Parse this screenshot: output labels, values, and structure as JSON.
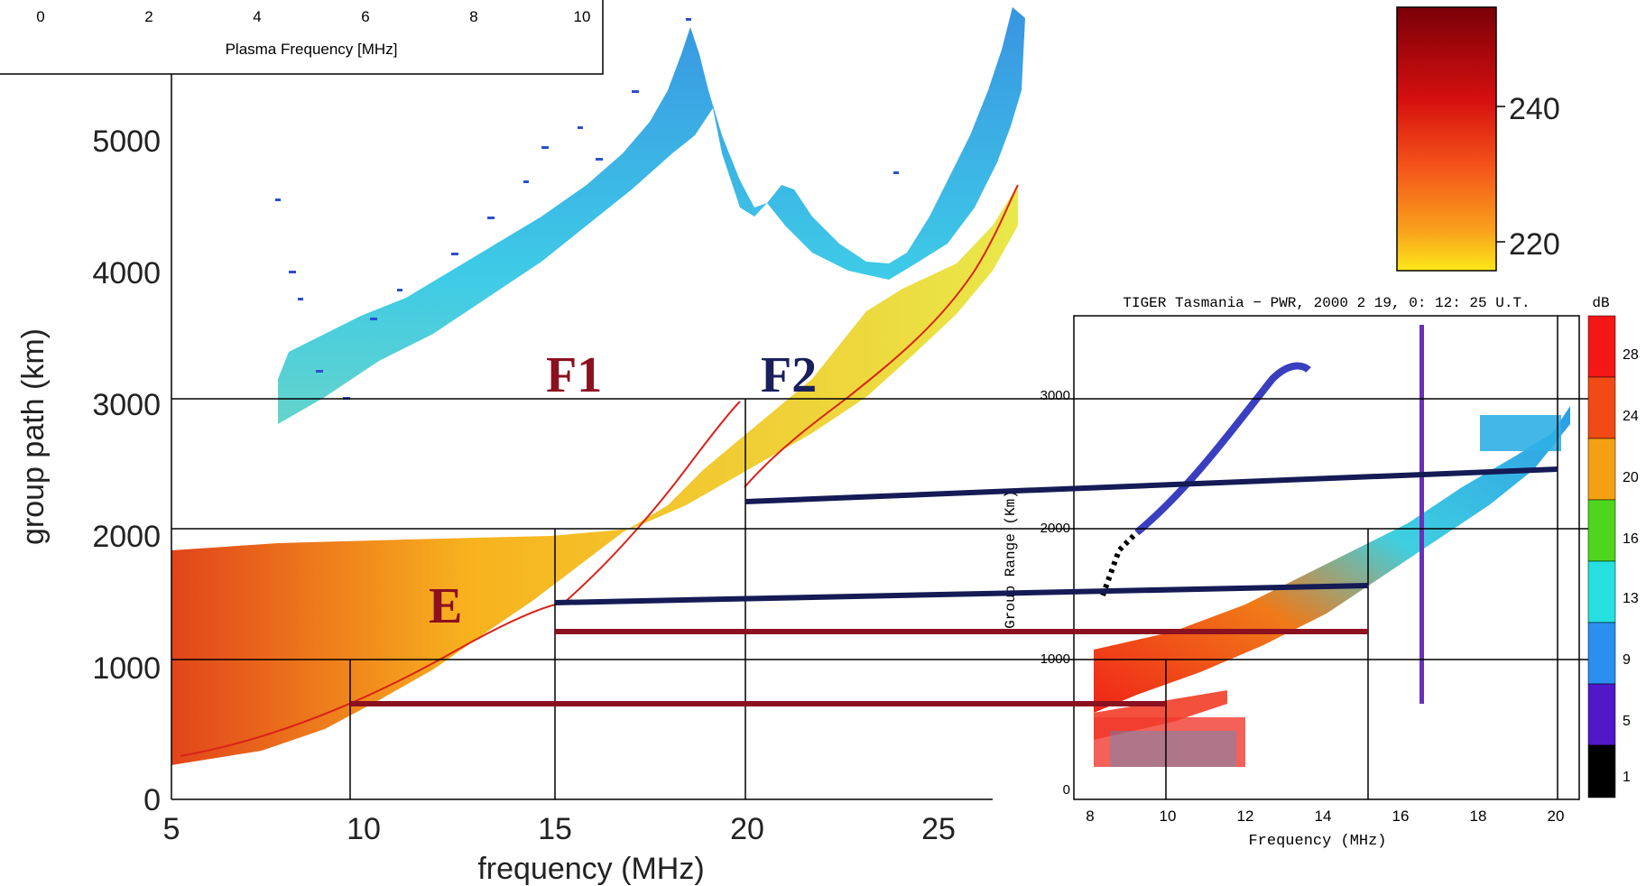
{
  "left_chart": {
    "xlabel": "frequency (MHz)",
    "ylabel": "group path (km)",
    "xticks": [
      "5",
      "10",
      "15",
      "20",
      "25"
    ],
    "yticks": [
      "0",
      "1000",
      "2000",
      "3000",
      "4000",
      "5000"
    ],
    "top_axis": {
      "label": "Plasma Frequency  [MHz]",
      "ticks": [
        "0",
        "2",
        "4",
        "6",
        "8",
        "10"
      ]
    },
    "layer_labels": {
      "f1": "F1",
      "f2": "F2",
      "e": "E"
    },
    "colorbar_ticks": [
      "240",
      "220"
    ]
  },
  "right_chart": {
    "title": "TIGER Tasmania − PWR, 2000 2 19, 0: 12: 25 U.T.",
    "xlabel": "Frequency (MHz)",
    "ylabel": "Group Range (Km)",
    "xticks": [
      "8",
      "10",
      "12",
      "14",
      "16",
      "18",
      "20"
    ],
    "yticks": [
      "0",
      "1000",
      "2000",
      "3000"
    ],
    "colorbar_unit": "dB",
    "colorbar_ticks": [
      "28",
      "24",
      "20",
      "16",
      "13",
      "9",
      "5",
      "1"
    ]
  },
  "colors": {
    "layer_label_red": "#8b1020",
    "layer_label_blue": "#1a1f5c",
    "link_red": "#8b1020",
    "link_blue": "#141b55"
  },
  "chart_data": [
    {
      "type": "heatmap",
      "title": "",
      "xlabel": "frequency (MHz)",
      "ylabel": "group path (km)",
      "xlim": [
        5,
        26.5
      ],
      "ylim": [
        0,
        5500
      ],
      "annotations": [
        {
          "text": "F1",
          "x": 15,
          "y": 3100
        },
        {
          "text": "F2",
          "x": 20,
          "y": 3100
        },
        {
          "text": "E",
          "x": 12,
          "y": 1400
        }
      ],
      "markers": [
        {
          "frequency": 9.8,
          "group_path": 1050
        },
        {
          "frequency": 15,
          "group_path": 2050
        },
        {
          "frequency": 20,
          "group_path": 3020
        }
      ],
      "colorbar": {
        "ticks": [
          240,
          220
        ]
      }
    },
    {
      "type": "heatmap",
      "title": "TIGER Tasmania − PWR, 2000 2 19, 0: 12: 25 U.T.",
      "xlabel": "Frequency (MHz)",
      "ylabel": "Group Range (Km)",
      "xlim": [
        7.5,
        20.5
      ],
      "ylim": [
        0,
        3500
      ],
      "markers": [
        {
          "frequency": 9.8,
          "group_range": 1000
        },
        {
          "frequency": 14.9,
          "group_range": 2000
        },
        {
          "frequency": 19.8,
          "group_range": 3000
        }
      ],
      "colorbar": {
        "unit": "dB",
        "ticks": [
          28,
          24,
          20,
          16,
          13,
          9,
          5,
          1
        ]
      }
    }
  ]
}
